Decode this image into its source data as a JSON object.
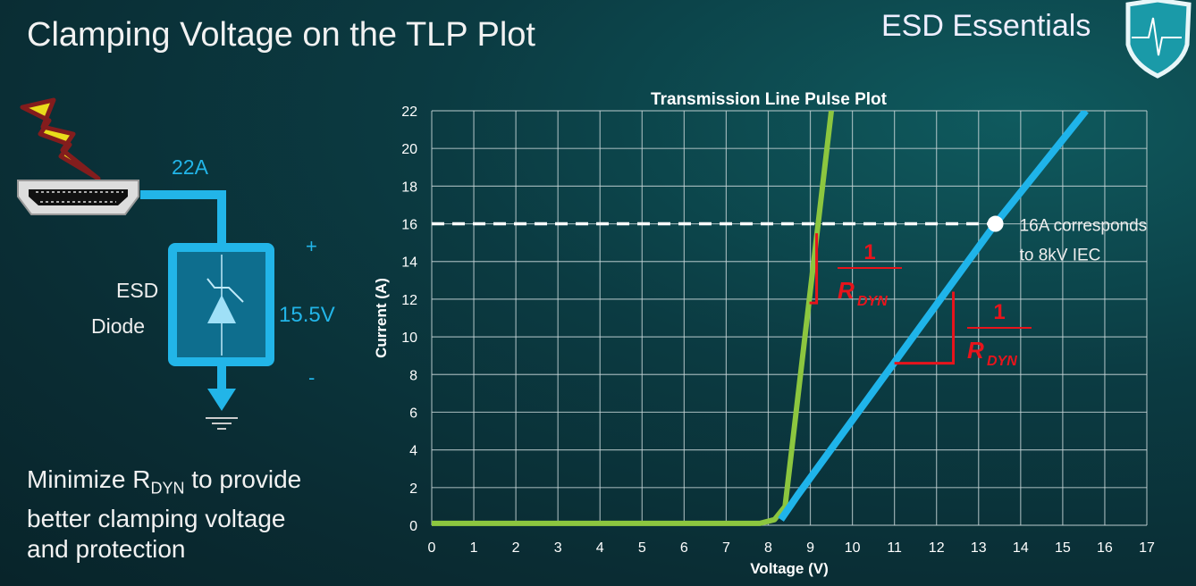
{
  "slide": {
    "title": "Clamping Voltage on the TLP Plot",
    "brand": "ESD Essentials",
    "tagline": {
      "line1_pre": "Minimize R",
      "line1_sub": "DYN",
      "line1_post": " to provide",
      "line2": "better clamping voltage",
      "line3": "and protection"
    }
  },
  "circuit": {
    "current_label": "22A",
    "device_label_1": "ESD",
    "device_label_2": "Diode",
    "voltage_label": "15.5V",
    "plus": "+",
    "minus": "-",
    "colors": {
      "wire": "#22b5e8",
      "box_fill": "#0e6e8e",
      "bolt": "#f5e61a"
    }
  },
  "chart_data": {
    "type": "line",
    "title": "Transmission Line Pulse Plot",
    "xlabel": "Voltage (V)",
    "ylabel": "Current (A)",
    "xlim": [
      0,
      17
    ],
    "ylim": [
      0,
      22
    ],
    "xticks": [
      "0",
      "1",
      "2",
      "3",
      "4",
      "5",
      "6",
      "7",
      "8",
      "9",
      "10",
      "11",
      "12",
      "13",
      "14",
      "15",
      "16",
      "17"
    ],
    "yticks": [
      "0",
      "2",
      "4",
      "6",
      "8",
      "10",
      "12",
      "14",
      "16",
      "18",
      "20",
      "22"
    ],
    "grid": true,
    "series": [
      {
        "color": "#8cc63f",
        "points": [
          [
            0,
            0.1
          ],
          [
            7.8,
            0.1
          ],
          [
            8.15,
            0.3
          ],
          [
            8.4,
            1.0
          ],
          [
            9.5,
            22
          ]
        ]
      },
      {
        "color": "#1fb4ea",
        "points": [
          [
            8.3,
            0.3
          ],
          [
            8.7,
            1.6
          ],
          [
            13.4,
            16
          ],
          [
            15.55,
            22
          ]
        ]
      }
    ],
    "reference_line": {
      "y": 16,
      "x_end": 13.4,
      "style": "dashed",
      "color": "#ffffff"
    },
    "marker": {
      "x": 13.4,
      "y": 16,
      "color": "#ffffff"
    },
    "annotation": {
      "line1": "16A corresponds",
      "line2": "to 8kV IEC"
    },
    "slope_labels": [
      {
        "numerator": "1",
        "denominator": "R",
        "subscript": "DYN",
        "color": "#e8141c",
        "triangle": [
          [
            9.15,
            11.8
          ],
          [
            9.15,
            15.5
          ]
        ]
      },
      {
        "numerator": "1",
        "denominator": "R",
        "subscript": "DYN",
        "color": "#e8141c",
        "triangle": [
          [
            11,
            8.6
          ],
          [
            12.4,
            8.6
          ],
          [
            12.4,
            12.4
          ]
        ]
      }
    ]
  }
}
